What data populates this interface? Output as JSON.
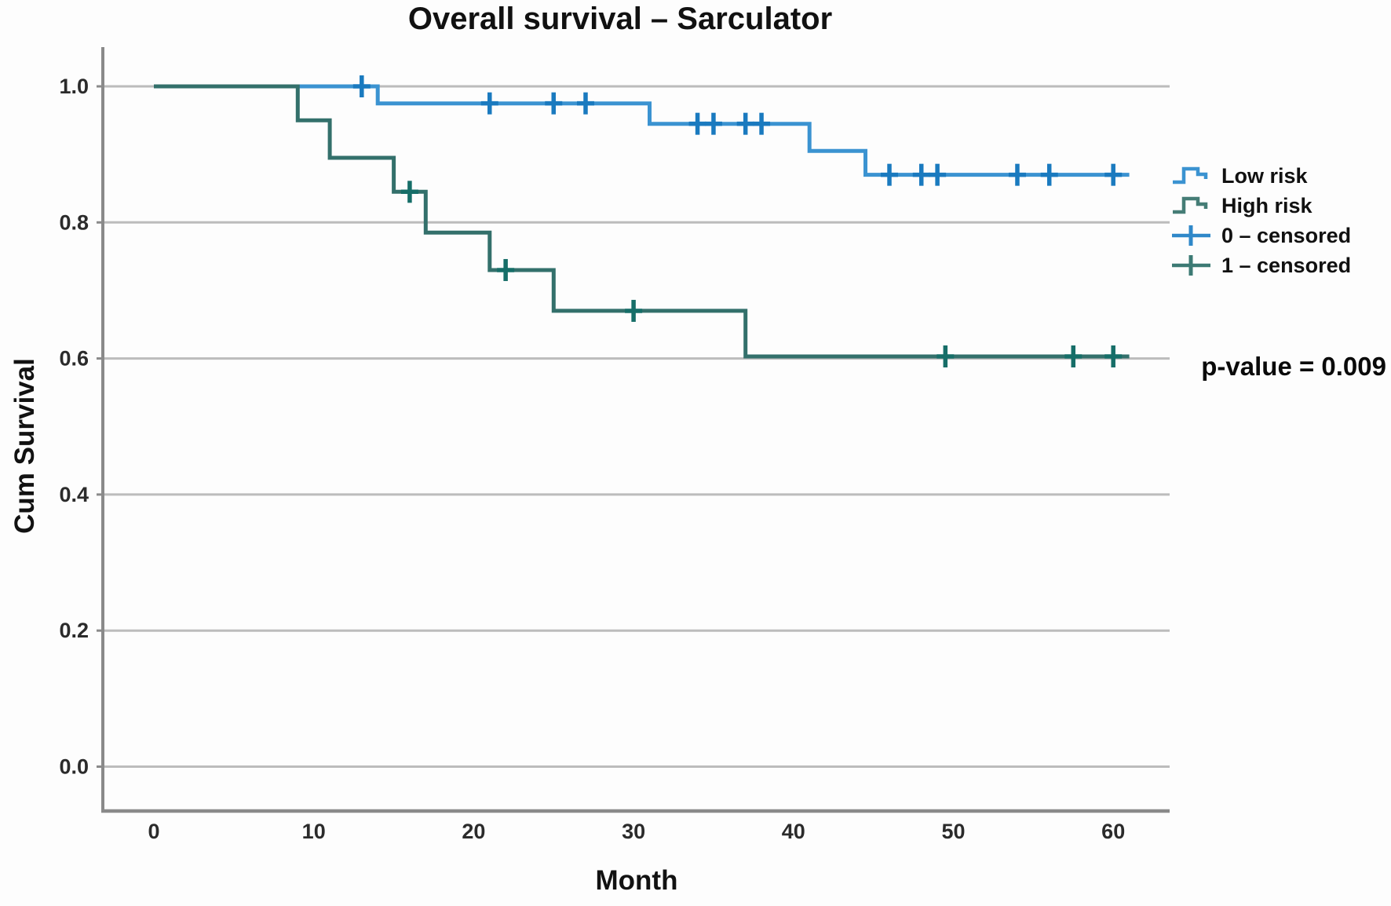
{
  "chart_data": {
    "type": "line",
    "subtype": "kaplan-meier-step",
    "title": "Overall survival – Sarculator",
    "xlabel": "Month",
    "ylabel": "Cum Survival",
    "annotation": "p-value = 0.009",
    "x_ticks": [
      0,
      10,
      20,
      30,
      40,
      50,
      60
    ],
    "y_ticks": [
      0.0,
      0.2,
      0.4,
      0.6,
      0.8,
      1.0
    ],
    "xlim": [
      0,
      63
    ],
    "ylim": [
      0,
      1.0
    ],
    "grid": "horizontal",
    "legend_position": "right",
    "series": [
      {
        "name": "Low risk",
        "color": "#3b93d1",
        "censor_color": "#1a7abf",
        "steps": [
          [
            0,
            1.0
          ],
          [
            14,
            1.0
          ],
          [
            14,
            0.975
          ],
          [
            31,
            0.975
          ],
          [
            31,
            0.945
          ],
          [
            41,
            0.945
          ],
          [
            41,
            0.905
          ],
          [
            44.5,
            0.905
          ],
          [
            44.5,
            0.87
          ],
          [
            61,
            0.87
          ]
        ],
        "censors": [
          [
            13,
            1.0
          ],
          [
            21,
            0.975
          ],
          [
            25,
            0.975
          ],
          [
            27,
            0.975
          ],
          [
            34,
            0.945
          ],
          [
            35,
            0.945
          ],
          [
            37,
            0.945
          ],
          [
            38,
            0.945
          ],
          [
            46,
            0.87
          ],
          [
            48,
            0.87
          ],
          [
            49,
            0.87
          ],
          [
            54,
            0.87
          ],
          [
            56,
            0.87
          ],
          [
            60,
            0.87
          ]
        ]
      },
      {
        "name": "High risk",
        "color": "#33706b",
        "censor_color": "#166e68",
        "steps": [
          [
            0,
            1.0
          ],
          [
            9,
            1.0
          ],
          [
            9,
            0.95
          ],
          [
            11,
            0.95
          ],
          [
            11,
            0.895
          ],
          [
            15,
            0.895
          ],
          [
            15,
            0.845
          ],
          [
            17,
            0.845
          ],
          [
            17,
            0.785
          ],
          [
            21,
            0.785
          ],
          [
            21,
            0.73
          ],
          [
            25,
            0.73
          ],
          [
            25,
            0.67
          ],
          [
            37,
            0.67
          ],
          [
            37,
            0.603
          ],
          [
            61,
            0.603
          ]
        ],
        "censors": [
          [
            16,
            0.845
          ],
          [
            22,
            0.73
          ],
          [
            30,
            0.67
          ],
          [
            49.5,
            0.603
          ],
          [
            57.5,
            0.603
          ],
          [
            60,
            0.603
          ]
        ]
      }
    ],
    "legend": [
      {
        "label": "Low risk",
        "type": "step",
        "color": "#3b93d1"
      },
      {
        "label": "High risk",
        "type": "step",
        "color": "#457d76"
      },
      {
        "label": "0 – censored",
        "type": "censor",
        "color": "#2f88c9"
      },
      {
        "label": "1 – censored",
        "type": "censor",
        "color": "#3c7a74"
      }
    ],
    "colors": {
      "grid": "#bcbcbc",
      "axis": "#8a8a8a",
      "tick_text": "#2b2b2b"
    }
  }
}
